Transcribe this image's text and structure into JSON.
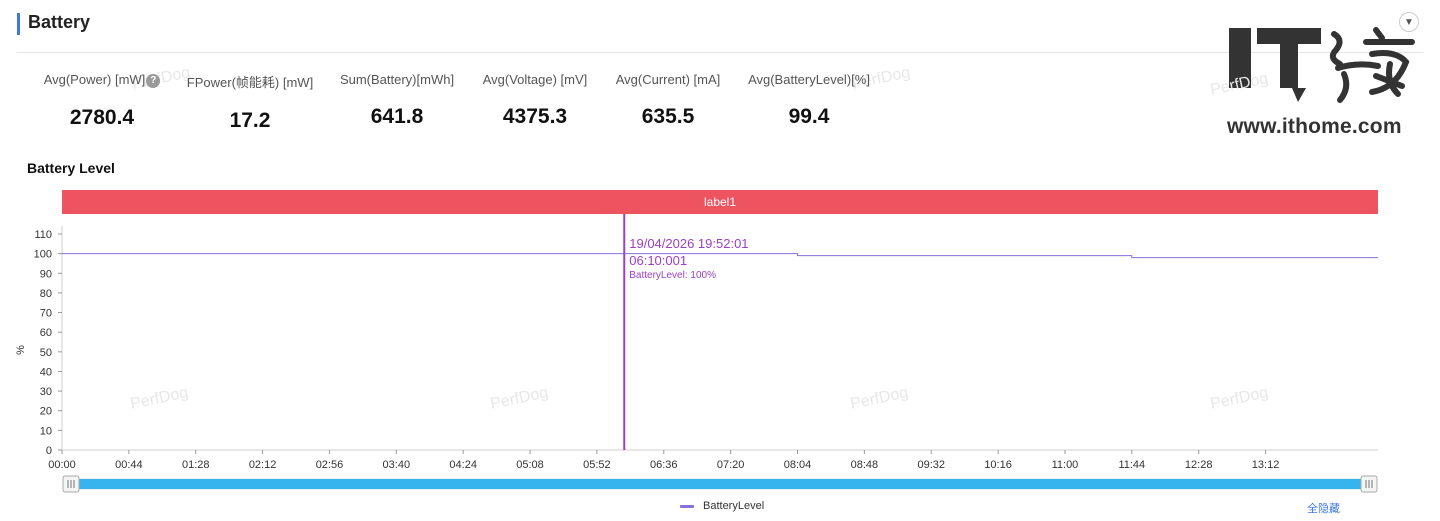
{
  "section": {
    "title": "Battery"
  },
  "metrics": [
    {
      "label": "Avg(Power) [mW]",
      "value": "2780.4",
      "help": "?"
    },
    {
      "label": "FPower(帧能耗) [mW]",
      "value": "17.2"
    },
    {
      "label": "Sum(Battery)[mWh]",
      "value": "641.8"
    },
    {
      "label": "Avg(Voltage) [mV]",
      "value": "4375.3"
    },
    {
      "label": "Avg(Current) [mA]",
      "value": "635.5"
    },
    {
      "label": "Avg(BatteryLevel)[%]",
      "value": "99.4"
    }
  ],
  "watermark_text": "PerfDog",
  "logo": {
    "mark": "IT之家",
    "url_text": "www.ithome.com"
  },
  "chart_data": {
    "type": "line",
    "title": "Battery Level",
    "ylabel": "%",
    "ylim": [
      0,
      110
    ],
    "yticks": [
      0,
      10,
      20,
      30,
      40,
      50,
      60,
      70,
      80,
      90,
      100,
      110
    ],
    "xlim_seconds": [
      0,
      866
    ],
    "xticks": [
      "00:00",
      "00:44",
      "01:28",
      "02:12",
      "02:56",
      "03:40",
      "04:24",
      "05:08",
      "05:52",
      "06:36",
      "07:20",
      "08:04",
      "08:48",
      "09:32",
      "10:16",
      "11:00",
      "11:44",
      "12:28",
      "13:12"
    ],
    "band_label": "label1",
    "series": [
      {
        "name": "BatteryLevel",
        "color": "#8a6fdc",
        "points": [
          {
            "t": "00:00",
            "value": 100
          },
          {
            "t": "08:04",
            "value": 100
          },
          {
            "t": "08:04",
            "value": 99
          },
          {
            "t": "11:44",
            "value": 99
          },
          {
            "t": "11:44",
            "value": 98
          },
          {
            "t": "14:26",
            "value": 98
          }
        ]
      }
    ],
    "tooltip": {
      "time": "06:10",
      "datetime": "19/04/2026 19:52:01",
      "elapsed": "06:10:001",
      "text": "BatteryLevel: 100%",
      "color": "#9b3fc4"
    },
    "legend": [
      "BatteryLevel"
    ],
    "legend_action": "全隐藏"
  }
}
